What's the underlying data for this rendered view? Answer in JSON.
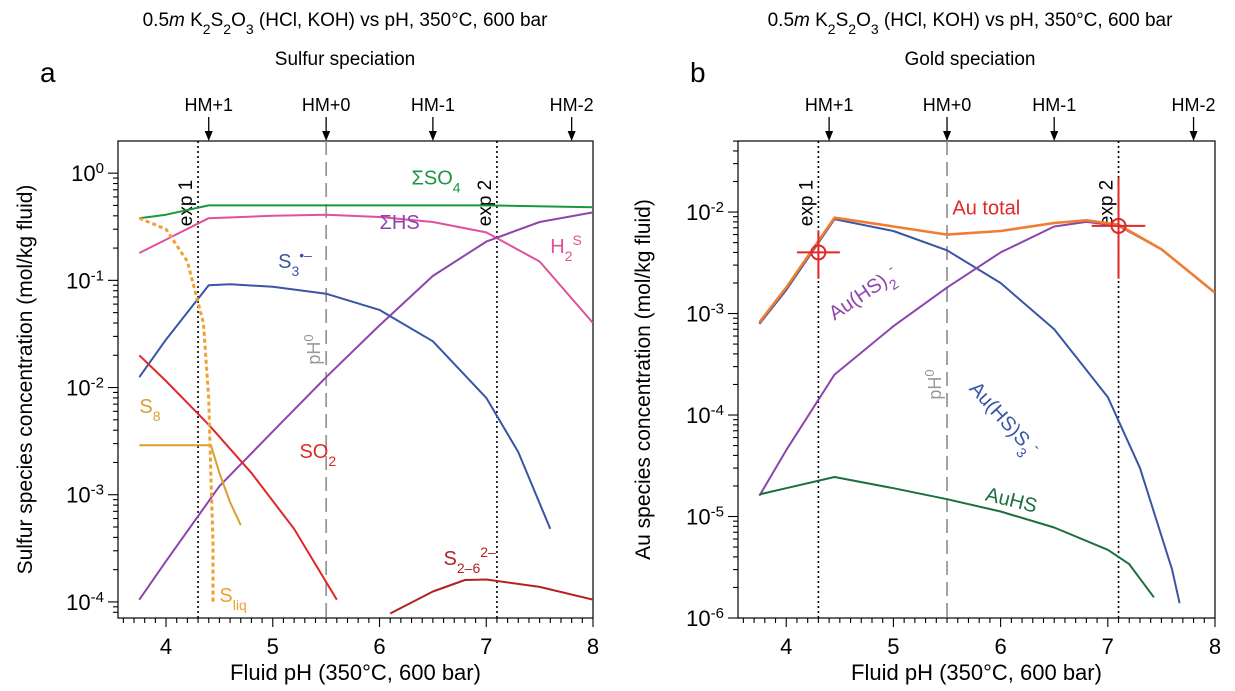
{
  "chart_data": [
    {
      "type": "line",
      "panel_letter": "a",
      "title_parts": [
        "0.5",
        "m",
        " K",
        "2",
        "S",
        "2",
        "O",
        "3",
        " (HCl, KOH) vs pH, 350°C, 600 bar"
      ],
      "subtitle": "Sulfur speciation",
      "xlabel": "Fluid pH (350°C, 600 bar)",
      "ylabel": "Sulfur species concentration (mol/kg fluid)",
      "xlim": [
        3.55,
        8.0
      ],
      "ylim_log10": [
        -4.15,
        0.3
      ],
      "x_ticks": [
        4,
        5,
        6,
        7,
        8
      ],
      "x_tick_labels": [
        "4",
        "5",
        "6",
        "7",
        "8"
      ],
      "y_major_exponents": [
        -4,
        -3,
        -2,
        -1,
        0
      ],
      "y_tick_labels": [
        [
          "10",
          "-4"
        ],
        [
          "10",
          "-3"
        ],
        [
          "10",
          "-2"
        ],
        [
          "10",
          "-1"
        ],
        [
          "10",
          "0"
        ]
      ],
      "grid": false,
      "top_markers": [
        {
          "label": "HM+1",
          "x": 4.4
        },
        {
          "label": "HM+0",
          "x": 5.5
        },
        {
          "label": "HM-1",
          "x": 6.5
        },
        {
          "label": "HM-2",
          "x": 7.8
        }
      ],
      "vlines": [
        {
          "x": 4.3,
          "style": "dotted",
          "color": "#000000",
          "label": "exp 1"
        },
        {
          "x": 7.1,
          "style": "dotted",
          "color": "#000000",
          "label": "exp 2"
        },
        {
          "x": 5.5,
          "style": "dashed",
          "color": "#999999",
          "label_parts": [
            "pH",
            "0"
          ]
        }
      ],
      "series": [
        {
          "color": "#1a9641",
          "dash": false,
          "points": [
            [
              3.75,
              0.38
            ],
            [
              4.0,
              0.41
            ],
            [
              4.4,
              0.5
            ],
            [
              5.0,
              0.5
            ],
            [
              6.0,
              0.5
            ],
            [
              7.0,
              0.5
            ],
            [
              8.0,
              0.48
            ]
          ]
        },
        {
          "color": "#e0509c",
          "dash": false,
          "points": [
            [
              3.75,
              0.18
            ],
            [
              4.0,
              0.24
            ],
            [
              4.4,
              0.38
            ],
            [
              5.0,
              0.4
            ],
            [
              5.5,
              0.41
            ],
            [
              6.0,
              0.39
            ],
            [
              6.5,
              0.35
            ],
            [
              7.0,
              0.28
            ],
            [
              7.5,
              0.15
            ],
            [
              8.0,
              0.04
            ]
          ]
        },
        {
          "color": "#8e44ad",
          "dash": false,
          "points": [
            [
              3.75,
              0.000105
            ],
            [
              4.0,
              0.00024
            ],
            [
              4.5,
              0.0012
            ],
            [
              5.0,
              0.0039
            ],
            [
              5.5,
              0.0125
            ],
            [
              6.0,
              0.038
            ],
            [
              6.5,
              0.11
            ],
            [
              7.0,
              0.23
            ],
            [
              7.5,
              0.35
            ],
            [
              8.0,
              0.43
            ]
          ]
        },
        {
          "color": "#3b55a5",
          "dash": false,
          "points": [
            [
              3.75,
              0.0125
            ],
            [
              4.0,
              0.028
            ],
            [
              4.4,
              0.09
            ],
            [
              4.6,
              0.092
            ],
            [
              5.0,
              0.087
            ],
            [
              5.5,
              0.075
            ],
            [
              6.0,
              0.053
            ],
            [
              6.5,
              0.027
            ],
            [
              7.0,
              0.008
            ],
            [
              7.3,
              0.0025
            ],
            [
              7.6,
              0.00048
            ]
          ]
        },
        {
          "color": "#e02828",
          "dash": false,
          "points": [
            [
              3.75,
              0.02
            ],
            [
              4.0,
              0.0115
            ],
            [
              4.4,
              0.0045
            ],
            [
              4.8,
              0.0016
            ],
            [
              5.2,
              0.00048
            ],
            [
              5.6,
              0.000105
            ]
          ]
        },
        {
          "color": "#d8a030",
          "dash": false,
          "points": [
            [
              3.75,
              0.0029
            ],
            [
              4.2,
              0.0029
            ],
            [
              4.42,
              0.0029
            ],
            [
              4.5,
              0.0016
            ],
            [
              4.6,
              0.00085
            ],
            [
              4.7,
              0.00052
            ]
          ]
        },
        {
          "color": "#f0a030",
          "dash": true,
          "points": [
            [
              3.75,
              0.38
            ],
            [
              4.0,
              0.3
            ],
            [
              4.2,
              0.15
            ],
            [
              4.35,
              0.04
            ],
            [
              4.4,
              0.008
            ],
            [
              4.42,
              0.0015
            ],
            [
              4.44,
              0.00035
            ],
            [
              4.44,
              9.5e-05
            ]
          ]
        },
        {
          "color": "#b22222",
          "dash": false,
          "points": [
            [
              6.1,
              7.8e-05
            ],
            [
              6.5,
              0.000125
            ],
            [
              6.8,
              0.00016
            ],
            [
              7.0,
              0.000162
            ],
            [
              7.5,
              0.000138
            ],
            [
              8.0,
              0.000105
            ]
          ]
        }
      ],
      "series_labels": [
        {
          "parts": [
            "ΣSO",
            "4"
          ],
          "color": "#1a9641",
          "x": 6.3,
          "y": 0.78
        },
        {
          "parts": [
            "H",
            "2",
            "S"
          ],
          "color": "#e0509c",
          "x": 7.6,
          "y": 0.18
        },
        {
          "parts": [
            "ΣHS"
          ],
          "color": "#8e44ad",
          "x": 6.0,
          "y": 0.3
        },
        {
          "parts": [
            "S",
            "3",
            "•–"
          ],
          "color": "#3b55a5",
          "x": 5.05,
          "y": 0.13
        },
        {
          "parts": [
            "SO",
            "2"
          ],
          "color": "#e02828",
          "x": 5.25,
          "y": 0.0022
        },
        {
          "parts": [
            "S",
            "8"
          ],
          "color": "#d8a030",
          "x": 3.75,
          "y": 0.0058
        },
        {
          "parts": [
            "S",
            "liq"
          ],
          "color": "#f0a030",
          "x": 4.5,
          "y": 0.0001
        },
        {
          "parts": [
            "S",
            "2–6",
            "2–"
          ],
          "color": "#b22222",
          "x": 6.6,
          "y": 0.00022
        }
      ]
    },
    {
      "type": "line",
      "panel_letter": "b",
      "title_parts": [
        "0.5",
        "m",
        " K",
        "2",
        "S",
        "2",
        "O",
        "3",
        " (HCl, KOH) vs pH, 350°C, 600 bar"
      ],
      "subtitle": "Gold speciation",
      "xlabel": "Fluid pH (350°C, 600 bar)",
      "ylabel": "Au species concentration (mol/kg fluid)",
      "xlim": [
        3.55,
        8.0
      ],
      "ylim_log10": [
        -6.0,
        -1.3
      ],
      "x_ticks": [
        4,
        5,
        6,
        7,
        8
      ],
      "x_tick_labels": [
        "4",
        "5",
        "6",
        "7",
        "8"
      ],
      "y_major_exponents": [
        -6,
        -5,
        -4,
        -3,
        -2
      ],
      "y_tick_labels": [
        [
          "10",
          "-6"
        ],
        [
          "10",
          "-5"
        ],
        [
          "10",
          "-4"
        ],
        [
          "10",
          "-3"
        ],
        [
          "10",
          "-2"
        ]
      ],
      "grid": false,
      "top_markers": [
        {
          "label": "HM+1",
          "x": 4.4
        },
        {
          "label": "HM+0",
          "x": 5.5
        },
        {
          "label": "HM-1",
          "x": 6.5
        },
        {
          "label": "HM-2",
          "x": 7.8
        }
      ],
      "vlines": [
        {
          "x": 4.3,
          "style": "dotted",
          "color": "#000000",
          "label": "exp 1"
        },
        {
          "x": 7.1,
          "style": "dotted",
          "color": "#000000",
          "label": "exp 2"
        },
        {
          "x": 5.5,
          "style": "dashed",
          "color": "#999999",
          "label_parts": [
            "pH",
            "0"
          ]
        }
      ],
      "series": [
        {
          "color": "#3b55a5",
          "dash": false,
          "points": [
            [
              3.75,
              0.00079
            ],
            [
              4.0,
              0.0017
            ],
            [
              4.45,
              0.0085
            ],
            [
              5.0,
              0.0065
            ],
            [
              5.5,
              0.0042
            ],
            [
              6.0,
              0.002
            ],
            [
              6.5,
              0.0007
            ],
            [
              7.0,
              0.00015
            ],
            [
              7.3,
              3e-05
            ],
            [
              7.6,
              3e-06
            ],
            [
              7.67,
              1.4e-06
            ]
          ]
        },
        {
          "color": "#8e44ad",
          "dash": false,
          "points": [
            [
              3.75,
              1.6e-05
            ],
            [
              4.0,
              4.5e-05
            ],
            [
              4.45,
              0.00025
            ],
            [
              5.0,
              0.00075
            ],
            [
              5.5,
              0.0018
            ],
            [
              6.0,
              0.004
            ],
            [
              6.5,
              0.0072
            ],
            [
              6.8,
              0.008
            ],
            [
              7.1,
              0.0073
            ],
            [
              7.5,
              0.0043
            ],
            [
              8.0,
              0.0016
            ]
          ]
        },
        {
          "color": "#1d6f3f",
          "dash": false,
          "points": [
            [
              3.75,
              1.65e-05
            ],
            [
              4.0,
              1.9e-05
            ],
            [
              4.45,
              2.45e-05
            ],
            [
              5.0,
              1.9e-05
            ],
            [
              5.5,
              1.48e-05
            ],
            [
              6.0,
              1.12e-05
            ],
            [
              6.5,
              7.8e-06
            ],
            [
              7.0,
              4.7e-06
            ],
            [
              7.2,
              3.4e-06
            ],
            [
              7.43,
              1.6e-06
            ]
          ]
        },
        {
          "color": "#f07d30",
          "dash": false,
          "width": 2.6,
          "points": [
            [
              3.75,
              0.00082
            ],
            [
              4.0,
              0.0018
            ],
            [
              4.45,
              0.0088
            ],
            [
              5.0,
              0.0072
            ],
            [
              5.5,
              0.006
            ],
            [
              6.0,
              0.0065
            ],
            [
              6.5,
              0.0078
            ],
            [
              6.8,
              0.0083
            ],
            [
              7.1,
              0.0075
            ],
            [
              7.5,
              0.0043
            ],
            [
              8.0,
              0.0016
            ]
          ]
        }
      ],
      "series_labels": [
        {
          "parts": [
            "Au total"
          ],
          "color": "#e02828",
          "x": 5.55,
          "y": 0.0095
        },
        {
          "parts": [
            "Au(HS)",
            "2",
            "-"
          ],
          "color": "#8e44ad",
          "x": 4.45,
          "y": 0.00085,
          "rotate": -34
        },
        {
          "parts": [
            "Au(HS)S",
            "3",
            "-"
          ],
          "color": "#3b55a5",
          "x": 5.7,
          "y": 0.00018,
          "rotate": 48
        },
        {
          "parts": [
            "AuHS"
          ],
          "color": "#1d6f3f",
          "x": 5.85,
          "y": 1.45e-05,
          "rotate": 14
        }
      ],
      "markers": [
        {
          "x": 4.3,
          "y": 0.004,
          "color": "#e02828",
          "xerr": 0.2,
          "y_low": 0.0022,
          "y_high": 0.0066
        },
        {
          "x": 7.1,
          "y": 0.0073,
          "color": "#e02828",
          "xerr": 0.25,
          "y_low": 0.0022,
          "y_high": 0.022
        }
      ]
    }
  ]
}
